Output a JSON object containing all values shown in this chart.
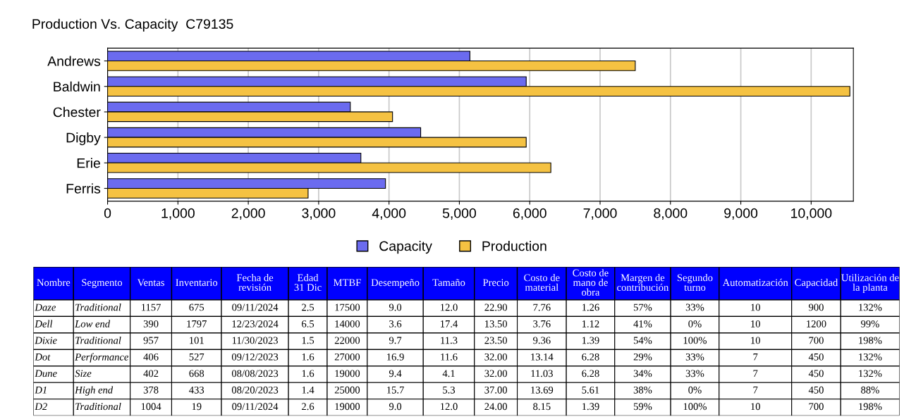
{
  "chart_data": [
    {
      "type": "bar",
      "orientation": "horizontal",
      "title": "Production Vs. Capacity  C79135",
      "categories": [
        "Andrews",
        "Baldwin",
        "Chester",
        "Digby",
        "Erie",
        "Ferris"
      ],
      "series": [
        {
          "name": "Capacity",
          "color": "#6b6bef",
          "values": [
            5150,
            5950,
            3450,
            4450,
            3600,
            3950
          ]
        },
        {
          "name": "Production",
          "color": "#f5c242",
          "values": [
            7500,
            10550,
            4050,
            5950,
            6300,
            2850
          ]
        }
      ],
      "xlim": [
        0,
        10600
      ],
      "xticks": [
        0,
        {
          "value": 1000,
          "label": "1,000"
        },
        {
          "value": 2000,
          "label": "2,000"
        },
        {
          "value": 3000,
          "label": "3,000"
        },
        {
          "value": 4000,
          "label": "4,000"
        },
        {
          "value": 5000,
          "label": "5,000"
        },
        {
          "value": 6000,
          "label": "6,000"
        },
        {
          "value": 7000,
          "label": "7,000"
        },
        {
          "value": 8000,
          "label": "8,000"
        },
        {
          "value": 9000,
          "label": "9,000"
        },
        {
          "value": 10000,
          "label": "10,000"
        }
      ],
      "grid": "x",
      "legend": "bottom"
    },
    {
      "type": "other",
      "color": "#0000ff",
      "categories": [
        "Nombre",
        "Segmento",
        "Ventas",
        "Inventario",
        "Fecha de\nrevisión",
        "Edad\n31 Dic",
        "MTBF",
        "Desempeño",
        "Tamaño",
        "Precio",
        "Costo de\nmaterial",
        "Costo de\nmano de\nobra",
        "Margen de\ncontribución",
        "Segundo\nturno",
        "Automatización",
        "Capacidad",
        "Utilización de\nla planta"
      ],
      "cell_labels": [
        [
          "Daze",
          "Traditional",
          "1157",
          "675",
          "09/11/2024",
          "2.5",
          "17500",
          "9.0",
          "12.0",
          "22.90",
          "7.76",
          "1.26",
          "57%",
          "33%",
          "10",
          "900",
          "132%"
        ],
        [
          "Dell",
          "Low end",
          "390",
          "1797",
          "12/23/2024",
          "6.5",
          "14000",
          "3.6",
          "17.4",
          "13.50",
          "3.76",
          "1.12",
          "41%",
          "0%",
          "10",
          "1200",
          "99%"
        ],
        [
          "Dixie",
          "Traditional",
          "957",
          "101",
          "11/30/2023",
          "1.5",
          "22000",
          "9.7",
          "11.3",
          "23.50",
          "9.36",
          "1.39",
          "54%",
          "100%",
          "10",
          "700",
          "198%"
        ],
        [
          "Dot",
          "Performance",
          "406",
          "527",
          "09/12/2023",
          "1.6",
          "27000",
          "16.9",
          "11.6",
          "32.00",
          "13.14",
          "6.28",
          "29%",
          "33%",
          "7",
          "450",
          "132%"
        ],
        [
          "Dune",
          "Size",
          "402",
          "668",
          "08/08/2023",
          "1.6",
          "19000",
          "9.4",
          "4.1",
          "32.00",
          "11.03",
          "6.28",
          "34%",
          "33%",
          "7",
          "450",
          "132%"
        ],
        [
          "D1",
          "High end",
          "378",
          "433",
          "08/20/2023",
          "1.4",
          "25000",
          "15.7",
          "5.3",
          "37.00",
          "13.69",
          "5.61",
          "38%",
          "0%",
          "7",
          "450",
          "88%"
        ],
        [
          "D2",
          "Traditional",
          "1004",
          "19",
          "09/11/2024",
          "2.6",
          "19000",
          "9.0",
          "12.0",
          "24.00",
          "8.15",
          "1.39",
          "59%",
          "100%",
          "10",
          "700",
          "198%"
        ]
      ]
    }
  ]
}
